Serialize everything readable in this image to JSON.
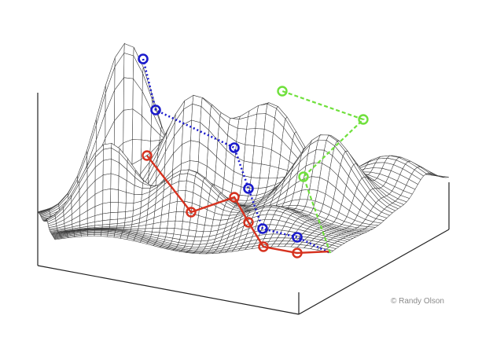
{
  "credit": "© Randy Olson",
  "colors": {
    "background": "#ffffff",
    "surface_mesh": "#3c3c3c",
    "box_edges": "#222222",
    "path_blue": "#1a1acc",
    "path_red": "#d6321f",
    "path_green": "#6fe03c",
    "credit_text": "#8a8a8a"
  },
  "paths": [
    {
      "name": "",
      "color_key": "path_blue",
      "line_style": "dotted"
    },
    {
      "name": "",
      "color_key": "path_red",
      "line_style": "solid"
    },
    {
      "name": "",
      "color_key": "path_green",
      "line_style": "dashed"
    }
  ]
}
